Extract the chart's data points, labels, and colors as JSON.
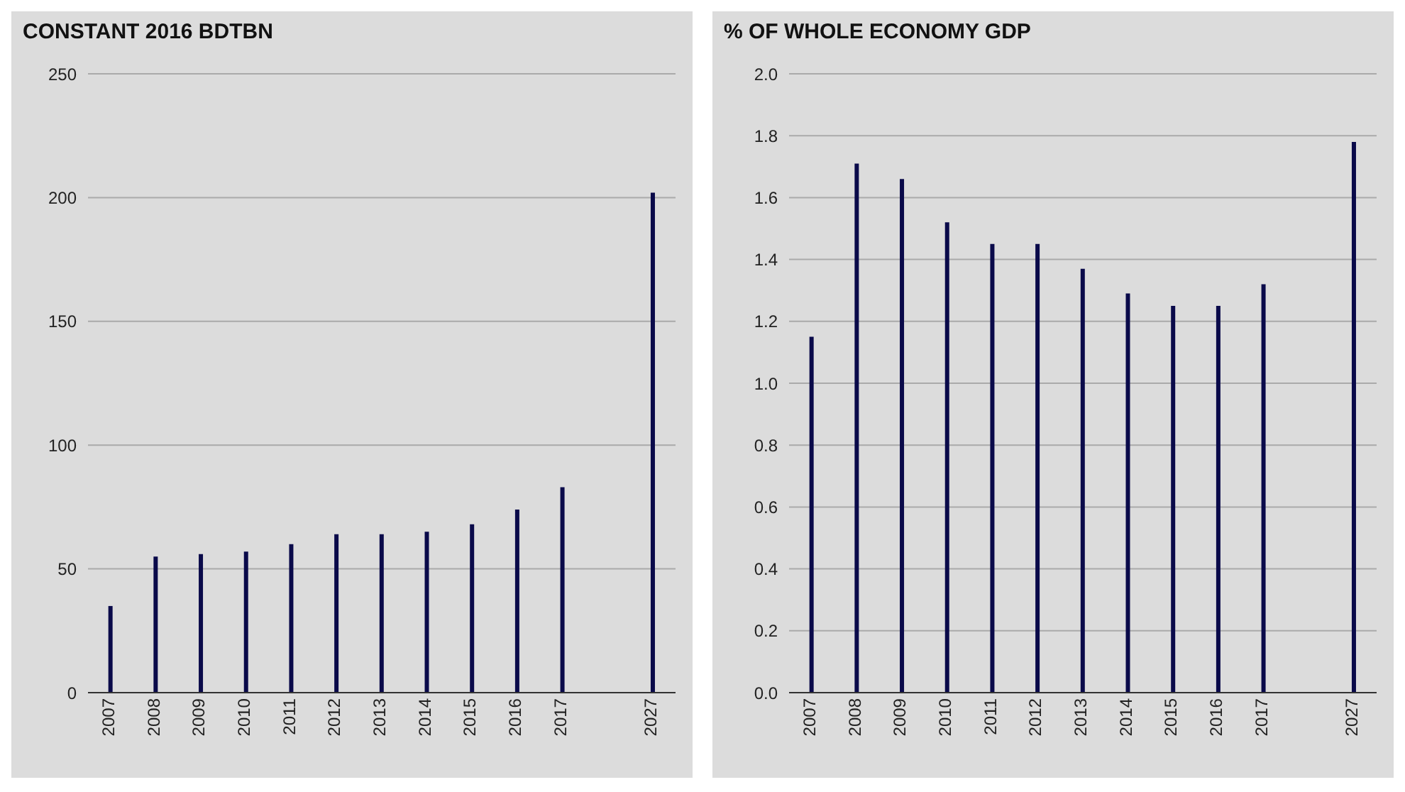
{
  "chart_data": [
    {
      "type": "bar",
      "title": "CONSTANT 2016 BDTBN",
      "categories": [
        "2007",
        "2008",
        "2009",
        "2010",
        "2011",
        "2012",
        "2013",
        "2014",
        "2015",
        "2016",
        "2017",
        null,
        "2027"
      ],
      "values": [
        35,
        55,
        56,
        57,
        60,
        64,
        64,
        65,
        68,
        74,
        83,
        null,
        202
      ],
      "color": "#0a0a4a",
      "ylim": [
        0,
        250
      ],
      "yticks": [
        0,
        50,
        100,
        150,
        200,
        250
      ],
      "grid": "y"
    },
    {
      "type": "bar",
      "title": "% OF WHOLE ECONOMY GDP",
      "categories": [
        "2007",
        "2008",
        "2009",
        "2010",
        "2011",
        "2012",
        "2013",
        "2014",
        "2015",
        "2016",
        "2017",
        null,
        "2027"
      ],
      "values": [
        1.15,
        1.71,
        1.66,
        1.52,
        1.45,
        1.45,
        1.37,
        1.29,
        1.25,
        1.25,
        1.32,
        null,
        1.78
      ],
      "color": "#0a0a4a",
      "ylim": [
        0,
        2
      ],
      "yticks": [
        {
          "value": 0,
          "label": "0.0"
        },
        0.2,
        0.4,
        0.6,
        0.8,
        {
          "value": 1,
          "label": "1.0"
        },
        1.2,
        1.4,
        1.6,
        1.8,
        {
          "value": 2,
          "label": "2.0"
        }
      ],
      "grid": "y"
    }
  ]
}
